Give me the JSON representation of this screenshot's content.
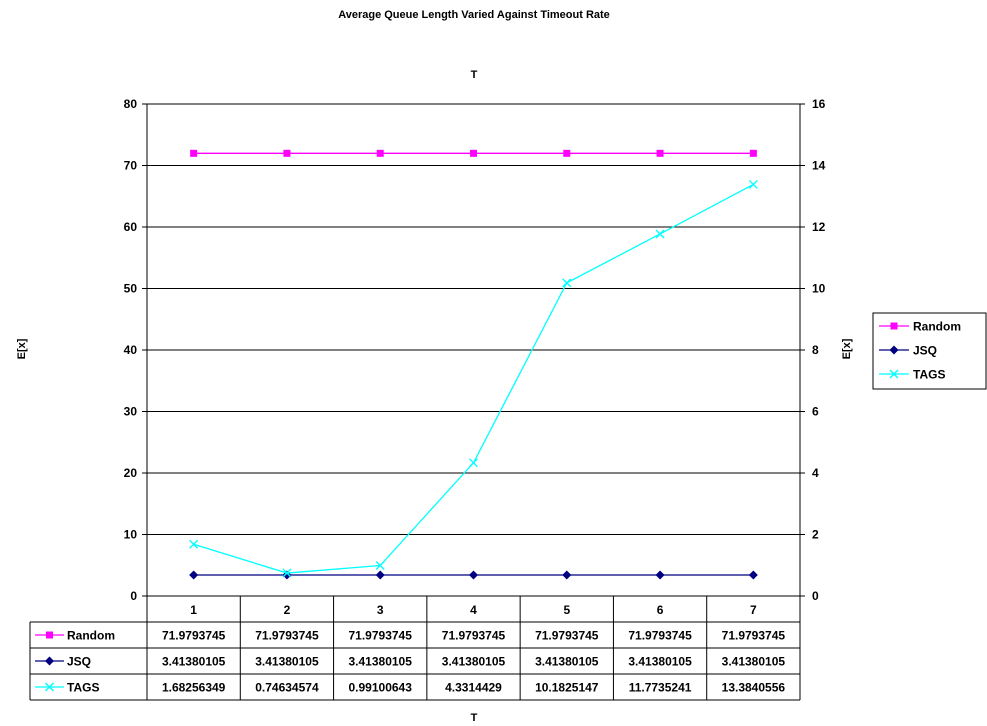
{
  "chart_data": {
    "type": "line",
    "title": "Average Queue Length Varied Against Timeout Rate",
    "x_top_label": "T",
    "xlabel": "T",
    "ylabel_left": "E[x]",
    "ylabel_right": "E[x]",
    "ylim_left": [
      0,
      80
    ],
    "yticks_left": [
      0,
      10,
      20,
      30,
      40,
      50,
      60,
      70,
      80
    ],
    "ylim_right": [
      0,
      16
    ],
    "yticks_right": [
      0,
      2,
      4,
      6,
      8,
      10,
      12,
      14,
      16
    ],
    "grid": "horizontal",
    "legend_position": "right",
    "categories": [
      "1",
      "2",
      "3",
      "4",
      "5",
      "6",
      "7"
    ],
    "series": [
      {
        "name": "Random",
        "axis": "left",
        "color": "#ff00ff",
        "marker": "square",
        "values": [
          71.9793745,
          71.9793745,
          71.9793745,
          71.9793745,
          71.9793745,
          71.9793745,
          71.9793745
        ],
        "labels": [
          "71.9793745",
          "71.9793745",
          "71.9793745",
          "71.9793745",
          "71.9793745",
          "71.9793745",
          "71.9793745"
        ]
      },
      {
        "name": "JSQ",
        "axis": "left",
        "color": "#000080",
        "marker": "diamond",
        "values": [
          3.41380105,
          3.41380105,
          3.41380105,
          3.41380105,
          3.41380105,
          3.41380105,
          3.41380105
        ],
        "labels": [
          "3.41380105",
          "3.41380105",
          "3.41380105",
          "3.41380105",
          "3.41380105",
          "3.41380105",
          "3.41380105"
        ]
      },
      {
        "name": "TAGS",
        "axis": "right",
        "color": "#00ffff",
        "marker": "x",
        "values": [
          1.68256349,
          0.74634574,
          0.99100643,
          4.3314429,
          10.1825147,
          11.7735241,
          13.3840556
        ],
        "labels": [
          "1.68256349",
          "0.74634574",
          "0.99100643",
          "4.3314429",
          "10.1825147",
          "11.7735241",
          "13.3840556"
        ]
      }
    ]
  }
}
